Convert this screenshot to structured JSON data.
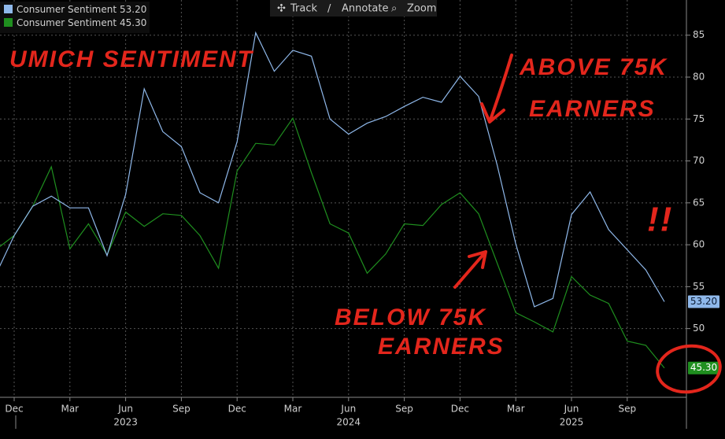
{
  "chart_data": {
    "type": "line",
    "categories": [
      null,
      "Dec",
      null,
      null,
      "Mar",
      null,
      null,
      "Jun",
      null,
      null,
      "Sep",
      null,
      null,
      "Dec",
      null,
      null,
      "Mar",
      null,
      null,
      "Jun",
      null,
      null,
      "Sep",
      null,
      null,
      "Dec",
      null,
      null,
      "Mar",
      null,
      null,
      "Jun",
      null,
      null,
      "Sep",
      null,
      null
    ],
    "x_group_labels": [
      {
        "value": 7,
        "label": "2023"
      },
      {
        "value": 19,
        "label": "2024"
      },
      {
        "value": 31,
        "label": "2025"
      }
    ],
    "series": [
      {
        "name": "Consumer Sentiment",
        "color": "#8fb8ea",
        "label_text_color": "#0a1a33",
        "values": [
          56.4,
          61.1,
          64.6,
          65.8,
          64.4,
          64.4,
          58.7,
          66.0,
          78.6,
          73.5,
          71.7,
          66.2,
          65.0,
          72.3,
          85.3,
          80.7,
          83.2,
          82.5,
          75.0,
          73.2,
          74.5,
          75.3,
          76.5,
          77.6,
          77.0,
          80.1,
          77.7,
          69.5,
          60.1,
          52.6,
          53.6,
          63.6,
          66.3,
          61.8,
          59.4,
          57.0,
          53.2
        ],
        "value_labels": [
          null,
          null,
          null,
          null,
          null,
          null,
          null,
          null,
          null,
          null,
          null,
          null,
          null,
          null,
          null,
          null,
          null,
          null,
          null,
          null,
          null,
          null,
          null,
          null,
          null,
          null,
          null,
          null,
          null,
          null,
          null,
          null,
          null,
          null,
          null,
          null,
          "53.20"
        ]
      },
      {
        "name": "Consumer Sentiment",
        "color": "#1f8f1f",
        "label_text_color": "#ffffff",
        "values": [
          59.4,
          61.1,
          64.6,
          69.3,
          59.5,
          62.5,
          58.8,
          63.9,
          62.2,
          63.7,
          63.5,
          61.1,
          57.2,
          68.8,
          72.1,
          71.9,
          75.1,
          68.6,
          62.5,
          61.4,
          56.6,
          58.9,
          62.5,
          62.3,
          64.8,
          66.2,
          63.7,
          57.8,
          51.9,
          50.8,
          49.6,
          56.2,
          54.0,
          53.0,
          48.5,
          48.0,
          45.3
        ],
        "value_labels": [
          null,
          null,
          null,
          null,
          null,
          null,
          null,
          null,
          null,
          null,
          null,
          null,
          null,
          null,
          null,
          null,
          null,
          null,
          null,
          null,
          null,
          null,
          null,
          null,
          null,
          null,
          null,
          null,
          null,
          null,
          null,
          null,
          null,
          null,
          null,
          null,
          "45.30"
        ]
      }
    ],
    "ylim": [
      41.8,
      89.2
    ],
    "yticks": [
      50,
      55,
      60,
      65,
      70,
      75,
      80,
      85
    ],
    "grid": true,
    "toolbar": [
      "Track",
      "Annotate",
      "Zoom"
    ],
    "annotations": [
      "UMICH SENTIMENT",
      "ABOVE 75K",
      "EARNERS",
      "BELOW 75K",
      "EARNERS",
      "!!"
    ]
  }
}
